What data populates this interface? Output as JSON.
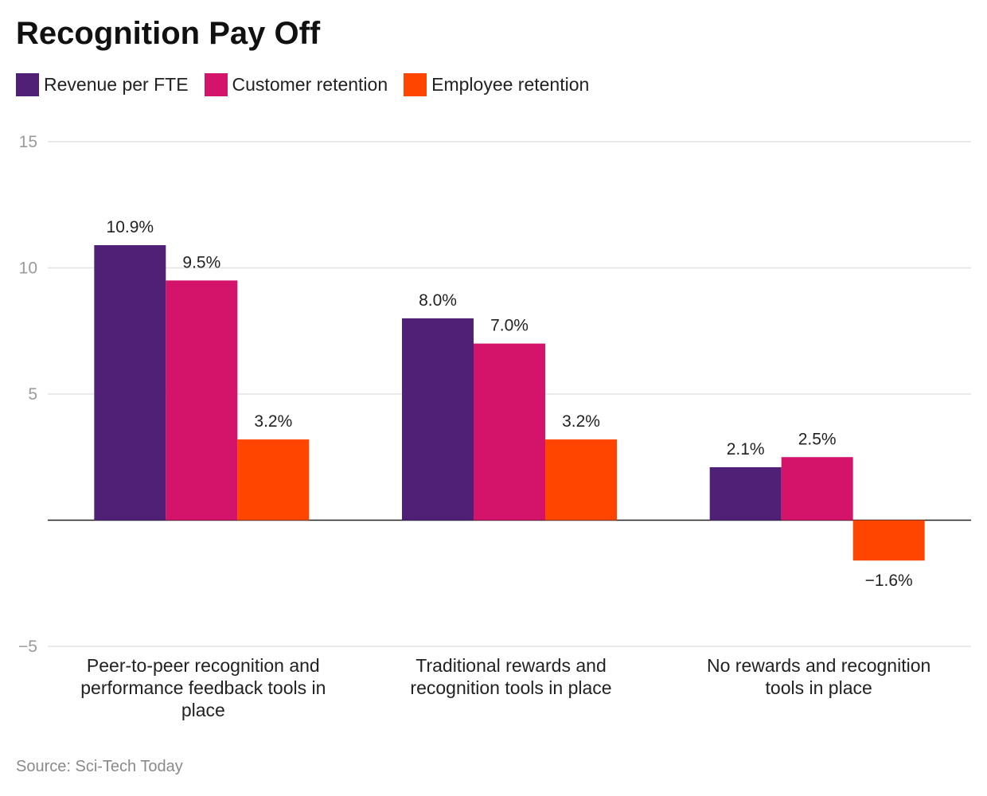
{
  "chart_data": {
    "type": "bar",
    "title": "Recognition Pay Off",
    "categories": [
      [
        "Peer-to-peer recognition and",
        "performance feedback tools in",
        "place"
      ],
      [
        "Traditional rewards and",
        "recognition tools in place"
      ],
      [
        "No rewards and recognition",
        "tools in place"
      ]
    ],
    "series": [
      {
        "name": "Revenue per FTE",
        "color": "#4f2075",
        "values": [
          10.9,
          8.0,
          2.1
        ],
        "labels": [
          "10.9%",
          "8.0%",
          "2.1%"
        ]
      },
      {
        "name": "Customer retention",
        "color": "#d4146a",
        "values": [
          9.5,
          7.0,
          2.5
        ],
        "labels": [
          "9.5%",
          "7.0%",
          "2.5%"
        ]
      },
      {
        "name": "Employee retention",
        "color": "#ff4500",
        "values": [
          3.2,
          3.2,
          -1.6
        ],
        "labels": [
          "3.2%",
          "3.2%",
          "−1.6%"
        ]
      }
    ],
    "yticks": [
      15,
      10,
      5,
      0,
      -5
    ],
    "ytick_labels": [
      "15",
      "10",
      "5",
      "",
      "−5"
    ],
    "ylim": [
      -5,
      15
    ],
    "xlabel": "",
    "ylabel": "",
    "grid": true,
    "legend": "top-left"
  },
  "source": "Source: Sci-Tech Today"
}
